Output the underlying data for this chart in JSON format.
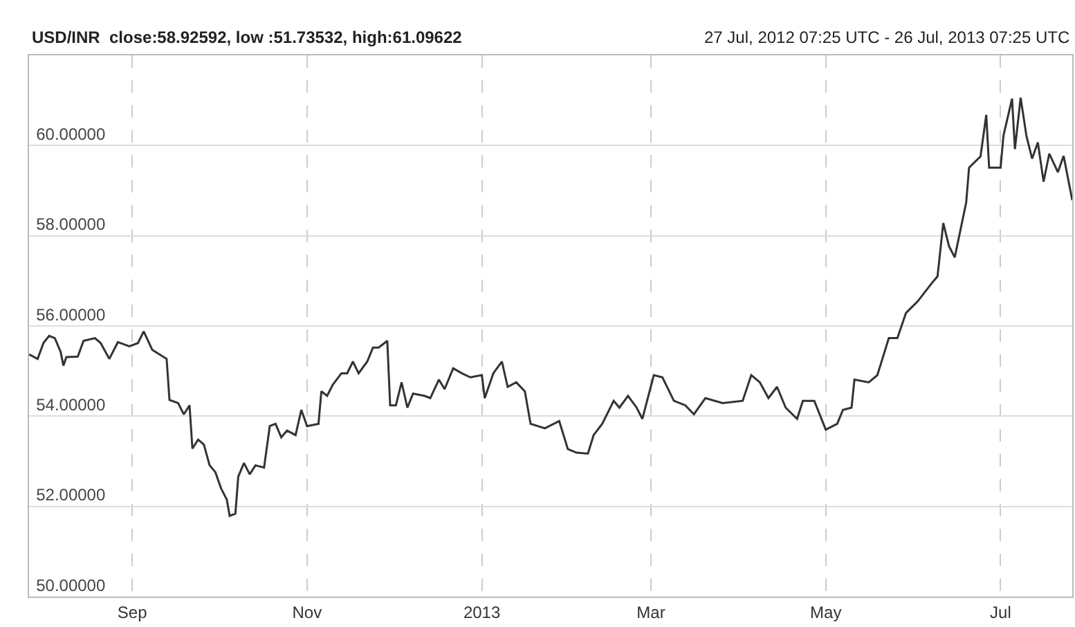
{
  "chart_data": {
    "type": "line",
    "title": "USD/INR  close:58.92592, low :51.73532, high:61.09622",
    "subtitle": "27 Jul, 2012 07:25 UTC - 26 Jul, 2013 07:25 UTC",
    "x": [
      "2012-07-27",
      "2012-07-30",
      "2012-08-01",
      "2012-08-03",
      "2012-08-05",
      "2012-08-07",
      "2012-08-08",
      "2012-08-09",
      "2012-08-13",
      "2012-08-15",
      "2012-08-19",
      "2012-08-21",
      "2012-08-24",
      "2012-08-27",
      "2012-08-31",
      "2012-09-03",
      "2012-09-05",
      "2012-09-08",
      "2012-09-13",
      "2012-09-14",
      "2012-09-17",
      "2012-09-19",
      "2012-09-21",
      "2012-09-22",
      "2012-09-24",
      "2012-09-26",
      "2012-09-28",
      "2012-09-30",
      "2012-10-02",
      "2012-10-04",
      "2012-10-05",
      "2012-10-07",
      "2012-10-08",
      "2012-10-10",
      "2012-10-12",
      "2012-10-14",
      "2012-10-17",
      "2012-10-19",
      "2012-10-21",
      "2012-10-23",
      "2012-10-25",
      "2012-10-28",
      "2012-10-30",
      "2012-11-01",
      "2012-11-05",
      "2012-11-06",
      "2012-11-08",
      "2012-11-10",
      "2012-11-13",
      "2012-11-15",
      "2012-11-17",
      "2012-11-19",
      "2012-11-22",
      "2012-11-24",
      "2012-11-26",
      "2012-11-29",
      "2012-11-30",
      "2012-12-02",
      "2012-12-04",
      "2012-12-06",
      "2012-12-08",
      "2012-12-12",
      "2012-12-14",
      "2012-12-17",
      "2012-12-19",
      "2012-12-22",
      "2012-12-25",
      "2012-12-28",
      "2013-01-01",
      "2013-01-02",
      "2013-01-05",
      "2013-01-08",
      "2013-01-10",
      "2013-01-13",
      "2013-01-16",
      "2013-01-18",
      "2013-01-23",
      "2013-01-28",
      "2013-01-31",
      "2013-02-03",
      "2013-02-07",
      "2013-02-09",
      "2013-02-12",
      "2013-02-16",
      "2013-02-18",
      "2013-02-21",
      "2013-02-24",
      "2013-02-26",
      "2013-03-02",
      "2013-03-05",
      "2013-03-09",
      "2013-03-13",
      "2013-03-16",
      "2013-03-20",
      "2013-03-26",
      "2013-04-02",
      "2013-04-05",
      "2013-04-08",
      "2013-04-11",
      "2013-04-14",
      "2013-04-17",
      "2013-04-21",
      "2013-04-23",
      "2013-04-27",
      "2013-05-01",
      "2013-05-05",
      "2013-05-07",
      "2013-05-10",
      "2013-05-11",
      "2013-05-16",
      "2013-05-19",
      "2013-05-23",
      "2013-05-26",
      "2013-05-29",
      "2013-06-02",
      "2013-06-07",
      "2013-06-09",
      "2013-06-11",
      "2013-06-13",
      "2013-06-15",
      "2013-06-19",
      "2013-06-20",
      "2013-06-24",
      "2013-06-26",
      "2013-06-27",
      "2013-07-01",
      "2013-07-02",
      "2013-07-05",
      "2013-07-06",
      "2013-07-08",
      "2013-07-10",
      "2013-07-12",
      "2013-07-14",
      "2013-07-16",
      "2013-07-18",
      "2013-07-21",
      "2013-07-23",
      "2013-07-26"
    ],
    "series": [
      {
        "color": "#333333",
        "values": [
          55.37,
          55.27,
          55.62,
          55.78,
          55.73,
          55.43,
          55.12,
          55.31,
          55.32,
          55.67,
          55.73,
          55.62,
          55.27,
          55.64,
          55.55,
          55.62,
          55.88,
          55.47,
          55.27,
          54.36,
          54.29,
          54.04,
          54.24,
          53.28,
          53.48,
          53.37,
          52.91,
          52.76,
          52.4,
          52.15,
          51.79,
          51.84,
          52.66,
          52.96,
          52.71,
          52.91,
          52.86,
          53.78,
          53.83,
          53.53,
          53.68,
          53.58,
          54.14,
          53.78,
          53.83,
          54.55,
          54.45,
          54.7,
          54.95,
          54.95,
          55.21,
          54.95,
          55.21,
          55.52,
          55.52,
          55.67,
          54.24,
          54.24,
          54.75,
          54.19,
          54.5,
          54.45,
          54.4,
          54.81,
          54.6,
          55.06,
          54.95,
          54.86,
          54.91,
          54.4,
          54.95,
          55.21,
          54.65,
          54.75,
          54.55,
          53.83,
          53.73,
          53.89,
          53.27,
          53.19,
          53.17,
          53.58,
          53.83,
          54.34,
          54.19,
          54.45,
          54.19,
          53.94,
          54.91,
          54.86,
          54.34,
          54.24,
          54.04,
          54.4,
          54.29,
          54.34,
          54.91,
          54.75,
          54.4,
          54.65,
          54.19,
          53.94,
          54.34,
          54.34,
          53.7,
          53.83,
          54.14,
          54.19,
          54.81,
          54.75,
          54.91,
          55.73,
          55.73,
          56.29,
          56.54,
          56.95,
          57.1,
          58.28,
          57.77,
          57.52,
          58.74,
          59.51,
          59.76,
          60.68,
          59.51,
          59.51,
          60.22,
          61.04,
          59.92,
          61.06,
          60.22,
          59.71,
          60.07,
          59.2,
          59.82,
          59.41,
          59.77,
          58.79
        ]
      }
    ],
    "xlim": [
      "2012-07-27",
      "2013-07-26"
    ],
    "xticks": [
      {
        "value": "2012-09-01",
        "label": "Sep"
      },
      {
        "value": "2012-11-01",
        "label": "Nov"
      },
      {
        "value": "2013-01-01",
        "label": "2013"
      },
      {
        "value": "2013-03-01",
        "label": "Mar"
      },
      {
        "value": "2013-05-01",
        "label": "May"
      },
      {
        "value": "2013-07-01",
        "label": "Jul"
      }
    ],
    "ylim": [
      50,
      62
    ],
    "yticks": [
      {
        "value": 50,
        "label": "50.00000"
      },
      {
        "value": 52,
        "label": "52.00000"
      },
      {
        "value": 54,
        "label": "54.00000"
      },
      {
        "value": 56,
        "label": "56.00000"
      },
      {
        "value": 58,
        "label": "58.00000"
      },
      {
        "value": 60,
        "label": "60.00000"
      }
    ],
    "grid": true,
    "marker": "none",
    "line_style": "solid"
  }
}
